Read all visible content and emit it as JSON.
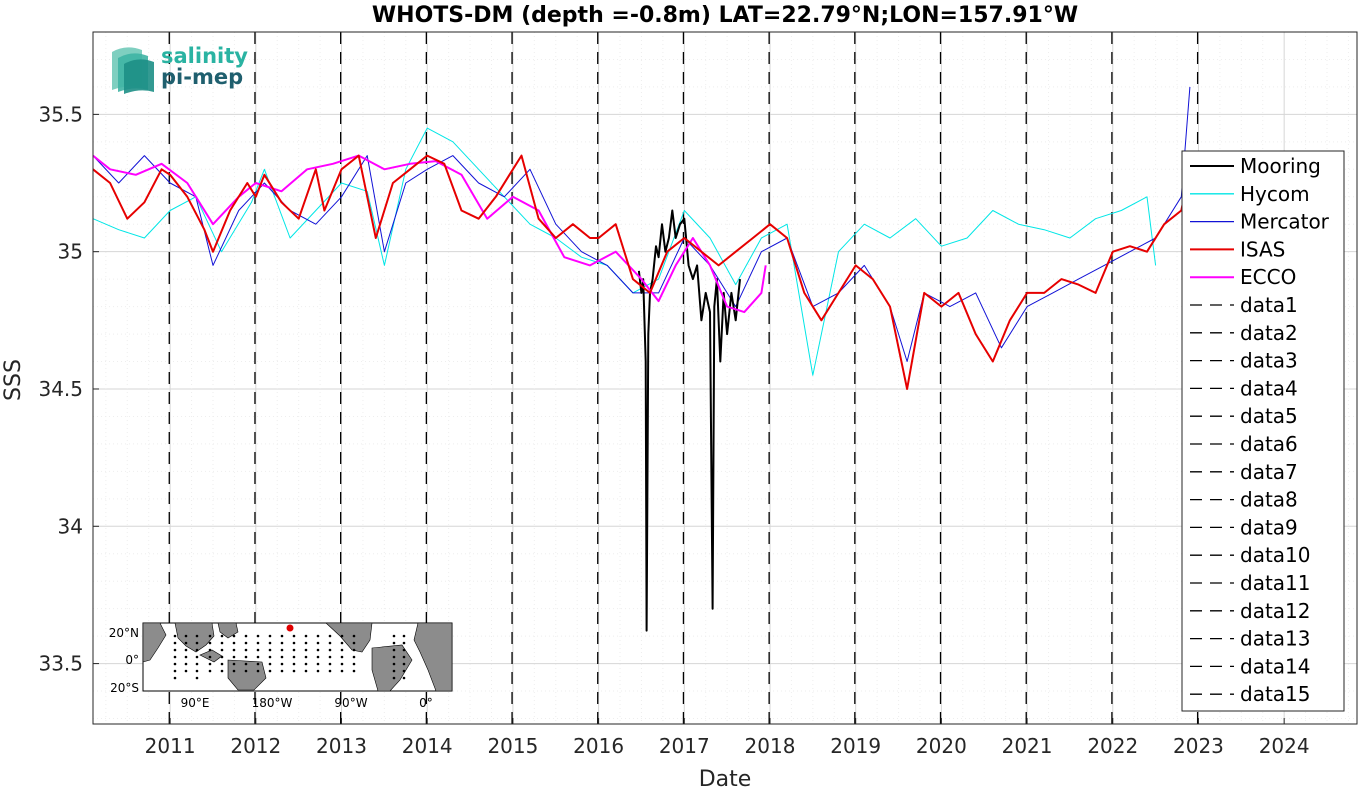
{
  "chart_data": {
    "type": "line",
    "title": "WHOTS-DM (depth =-0.8m) LAT=22.79°N;LON=157.91°W",
    "xlabel": "Date",
    "ylabel": "SSS",
    "xlim": [
      2010.1,
      2024.85
    ],
    "ylim": [
      33.28,
      35.8
    ],
    "x_ticks": [
      "2011",
      "2012",
      "2013",
      "2014",
      "2015",
      "2016",
      "2017",
      "2018",
      "2019",
      "2020",
      "2021",
      "2022",
      "2023",
      "2024"
    ],
    "x_tick_values": [
      2011,
      2012,
      2013,
      2014,
      2015,
      2016,
      2017,
      2018,
      2019,
      2020,
      2021,
      2022,
      2023,
      2024
    ],
    "y_ticks": [
      "33.5",
      "34",
      "34.5",
      "35",
      "35.5"
    ],
    "y_tick_values": [
      33.5,
      34.0,
      34.5,
      35.0,
      35.5
    ],
    "grid": true,
    "legend_position": "right",
    "vertical_lines": [
      2010.99,
      2011.99,
      2012.99,
      2013.99,
      2014.99,
      2015.99,
      2016.99,
      2017.99,
      2018.99,
      2019.99,
      2020.99,
      2021.99,
      2022.99
    ],
    "series": [
      {
        "name": "Mooring",
        "color": "#000000",
        "x": [
          2016.47,
          2016.5,
          2016.52,
          2016.55,
          2016.56,
          2016.58,
          2016.6,
          2016.63,
          2016.67,
          2016.7,
          2016.74,
          2016.78,
          2016.82,
          2016.86,
          2016.9,
          2016.95,
          2017.0,
          2017.05,
          2017.1,
          2017.15,
          2017.2,
          2017.25,
          2017.3,
          2017.33,
          2017.35,
          2017.38,
          2017.42,
          2017.46,
          2017.5,
          2017.55,
          2017.6,
          2017.65
        ],
        "y": [
          34.93,
          34.85,
          34.9,
          34.6,
          33.62,
          34.7,
          34.85,
          34.9,
          35.02,
          34.98,
          35.1,
          35.0,
          35.05,
          35.15,
          35.05,
          35.1,
          35.12,
          34.95,
          34.9,
          34.95,
          34.75,
          34.85,
          34.78,
          33.7,
          34.8,
          34.9,
          34.6,
          34.85,
          34.7,
          34.85,
          34.75,
          34.9
        ]
      },
      {
        "name": "Hycom",
        "color": "#00e6e6",
        "x": [
          2010.1,
          2010.4,
          2010.7,
          2011.0,
          2011.3,
          2011.6,
          2011.95,
          2012.1,
          2012.4,
          2012.7,
          2013.0,
          2013.3,
          2013.5,
          2013.75,
          2014.0,
          2014.3,
          2014.6,
          2014.9,
          2015.2,
          2015.5,
          2015.8,
          2016.1,
          2016.4,
          2016.7,
          2017.0,
          2017.3,
          2017.6,
          2017.9,
          2018.2,
          2018.5,
          2018.8,
          2019.1,
          2019.4,
          2019.7,
          2020.0,
          2020.3,
          2020.6,
          2020.9,
          2021.2,
          2021.5,
          2021.8,
          2022.1,
          2022.4,
          2022.5
        ],
        "y": [
          35.12,
          35.08,
          35.05,
          35.15,
          35.2,
          35.0,
          35.18,
          35.3,
          35.05,
          35.15,
          35.25,
          35.22,
          34.95,
          35.3,
          35.45,
          35.4,
          35.3,
          35.2,
          35.1,
          35.05,
          34.98,
          34.95,
          34.85,
          34.9,
          35.15,
          35.05,
          34.88,
          35.05,
          35.1,
          34.55,
          35.0,
          35.1,
          35.05,
          35.12,
          35.02,
          35.05,
          35.15,
          35.1,
          35.08,
          35.05,
          35.12,
          35.15,
          35.2,
          34.95
        ]
      },
      {
        "name": "Mercator",
        "color": "#1212d6",
        "x": [
          2010.1,
          2010.4,
          2010.7,
          2011.0,
          2011.3,
          2011.5,
          2011.8,
          2012.1,
          2012.4,
          2012.7,
          2013.0,
          2013.3,
          2013.5,
          2013.75,
          2014.0,
          2014.3,
          2014.6,
          2014.9,
          2015.2,
          2015.5,
          2015.8,
          2016.1,
          2016.4,
          2016.7,
          2017.0,
          2017.3,
          2017.6,
          2017.9,
          2018.2,
          2018.5,
          2018.8,
          2019.1,
          2019.4,
          2019.6,
          2019.8,
          2020.1,
          2020.4,
          2020.7,
          2021.0,
          2021.3,
          2021.6,
          2021.9,
          2022.2,
          2022.5,
          2022.8,
          2022.9
        ],
        "y": [
          35.35,
          35.25,
          35.35,
          35.25,
          35.2,
          34.95,
          35.15,
          35.25,
          35.15,
          35.1,
          35.2,
          35.35,
          35.0,
          35.25,
          35.3,
          35.35,
          35.25,
          35.2,
          35.3,
          35.1,
          35.0,
          34.95,
          34.85,
          34.85,
          35.05,
          34.95,
          34.8,
          35.0,
          35.05,
          34.8,
          34.85,
          34.95,
          34.8,
          34.6,
          34.85,
          34.8,
          34.85,
          34.65,
          34.8,
          34.85,
          34.9,
          34.95,
          35.0,
          35.05,
          35.2,
          35.6
        ]
      },
      {
        "name": "ISAS",
        "color": "#e60000",
        "x": [
          2010.1,
          2010.3,
          2010.5,
          2010.7,
          2010.9,
          2011.0,
          2011.2,
          2011.4,
          2011.5,
          2011.7,
          2011.9,
          2012.0,
          2012.1,
          2012.3,
          2012.5,
          2012.7,
          2012.8,
          2013.0,
          2013.2,
          2013.4,
          2013.6,
          2013.8,
          2014.0,
          2014.2,
          2014.4,
          2014.6,
          2014.8,
          2015.0,
          2015.1,
          2015.3,
          2015.5,
          2015.7,
          2015.9,
          2016.0,
          2016.2,
          2016.4,
          2016.6,
          2016.8,
          2017.0,
          2017.2,
          2017.4,
          2017.6,
          2017.8,
          2018.0,
          2018.2,
          2018.4,
          2018.6,
          2018.8,
          2019.0,
          2019.2,
          2019.4,
          2019.6,
          2019.8,
          2020.0,
          2020.2,
          2020.4,
          2020.6,
          2020.8,
          2021.0,
          2021.2,
          2021.4,
          2021.6,
          2021.8,
          2022.0,
          2022.2,
          2022.4,
          2022.6,
          2022.8,
          2022.9
        ],
        "y": [
          35.3,
          35.25,
          35.12,
          35.18,
          35.3,
          35.28,
          35.2,
          35.08,
          35.0,
          35.15,
          35.25,
          35.2,
          35.28,
          35.18,
          35.12,
          35.3,
          35.15,
          35.3,
          35.35,
          35.05,
          35.25,
          35.3,
          35.35,
          35.32,
          35.15,
          35.12,
          35.2,
          35.3,
          35.35,
          35.12,
          35.05,
          35.1,
          35.05,
          35.05,
          35.1,
          34.9,
          34.85,
          35.0,
          35.05,
          35.0,
          34.95,
          35.0,
          35.05,
          35.1,
          35.05,
          34.85,
          34.75,
          34.85,
          34.95,
          34.9,
          34.8,
          34.5,
          34.85,
          34.8,
          34.85,
          34.7,
          34.6,
          34.75,
          34.85,
          34.85,
          34.9,
          34.88,
          34.85,
          35.0,
          35.02,
          35.0,
          35.1,
          35.15,
          35.3
        ]
      },
      {
        "name": "ECCO",
        "color": "#ff00ff",
        "x": [
          2010.1,
          2010.3,
          2010.6,
          2010.9,
          2011.2,
          2011.5,
          2011.8,
          2012.0,
          2012.3,
          2012.6,
          2012.9,
          2013.2,
          2013.5,
          2013.8,
          2014.1,
          2014.4,
          2014.7,
          2015.0,
          2015.3,
          2015.6,
          2015.9,
          2016.2,
          2016.5,
          2016.7,
          2016.9,
          2017.1,
          2017.3,
          2017.5,
          2017.7,
          2017.9,
          2017.95
        ],
        "y": [
          35.35,
          35.3,
          35.28,
          35.32,
          35.25,
          35.1,
          35.2,
          35.25,
          35.22,
          35.3,
          35.32,
          35.35,
          35.3,
          35.32,
          35.33,
          35.28,
          35.12,
          35.2,
          35.15,
          34.98,
          34.95,
          35.0,
          34.9,
          34.82,
          34.95,
          35.05,
          34.95,
          34.8,
          34.78,
          34.85,
          34.95
        ]
      }
    ],
    "reference_series": [
      "data1",
      "data2",
      "data3",
      "data4",
      "data5",
      "data6",
      "data7",
      "data8",
      "data9",
      "data10",
      "data11",
      "data12",
      "data13",
      "data14",
      "data15"
    ]
  },
  "logo": {
    "line1": "salinity",
    "line2": "pi-mep"
  },
  "inset_map": {
    "lat_labels": [
      "20°N",
      "0°",
      "20°S"
    ],
    "lon_labels": [
      "90°E",
      "180°W",
      "90°W",
      "0°"
    ]
  }
}
